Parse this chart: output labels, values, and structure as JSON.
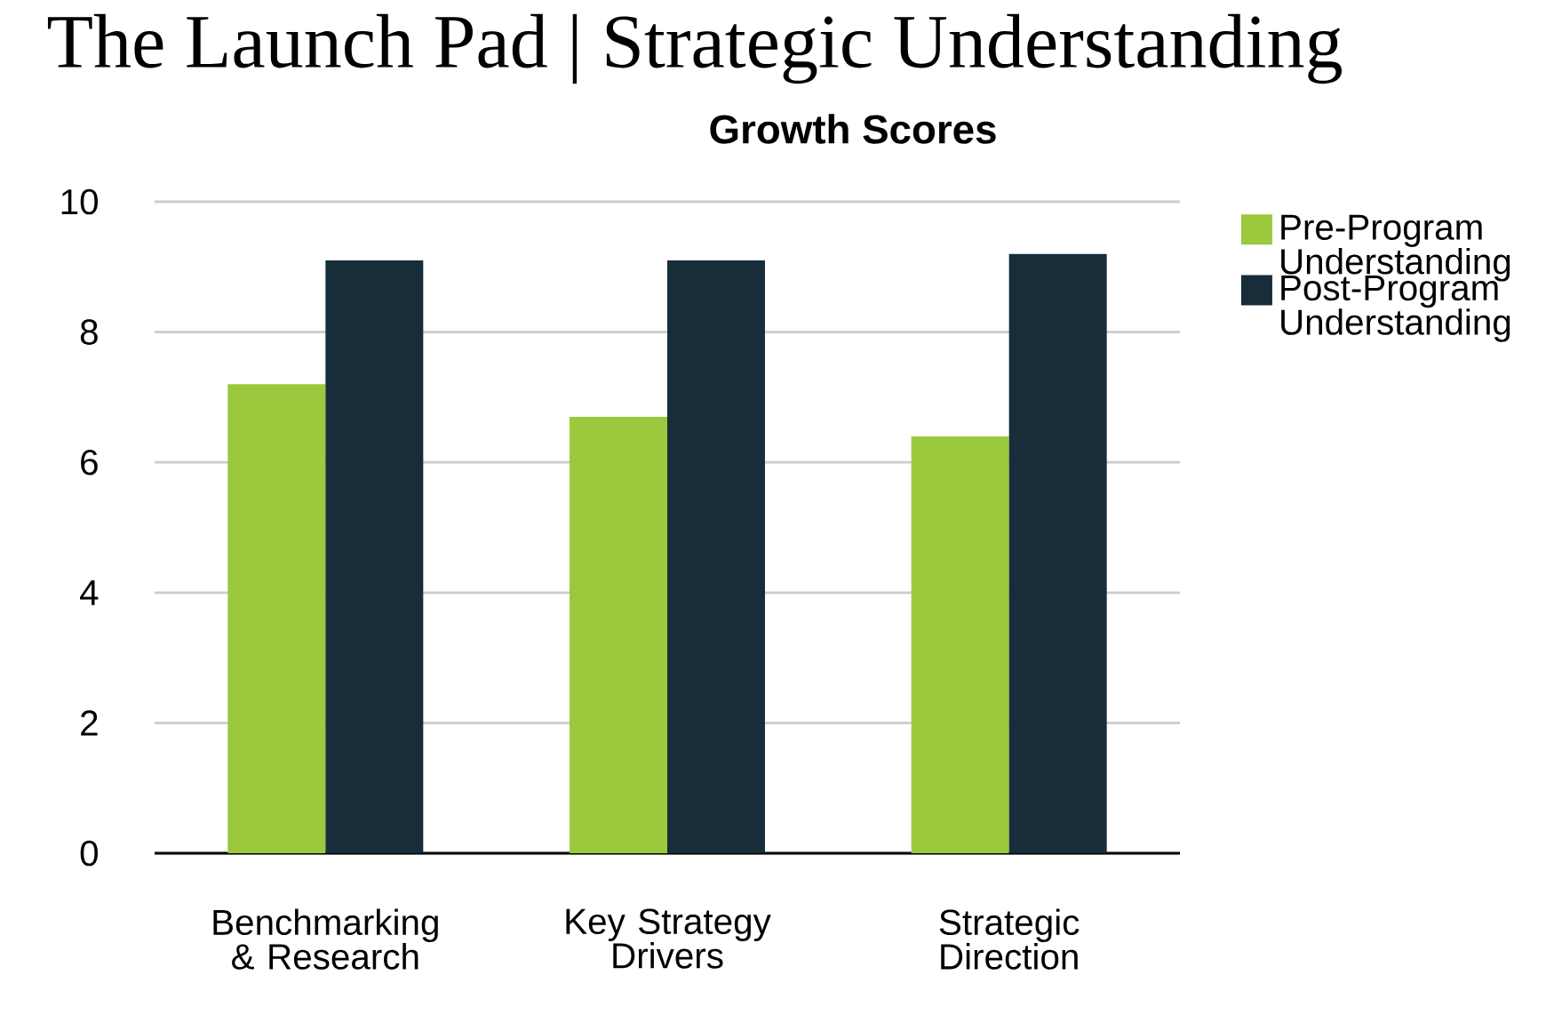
{
  "chart_data": {
    "type": "bar",
    "title": "The Launch Pad | Strategic Understanding",
    "subtitle": "Growth Scores",
    "categories": [
      "Benchmarking & Research",
      "Key Strategy Drivers",
      "Strategic Direction"
    ],
    "series": [
      {
        "name": "Pre-Program Understanding",
        "color": "#9bc83c",
        "values": [
          7.2,
          6.7,
          6.4
        ]
      },
      {
        "name": "Post-Program Understanding",
        "color": "#172d3a",
        "values": [
          9.1,
          9.1,
          9.2
        ]
      }
    ],
    "ylim": [
      0,
      10
    ],
    "yticks": [
      0,
      2,
      4,
      6,
      8,
      10
    ],
    "grid": "y",
    "legend": "right"
  }
}
